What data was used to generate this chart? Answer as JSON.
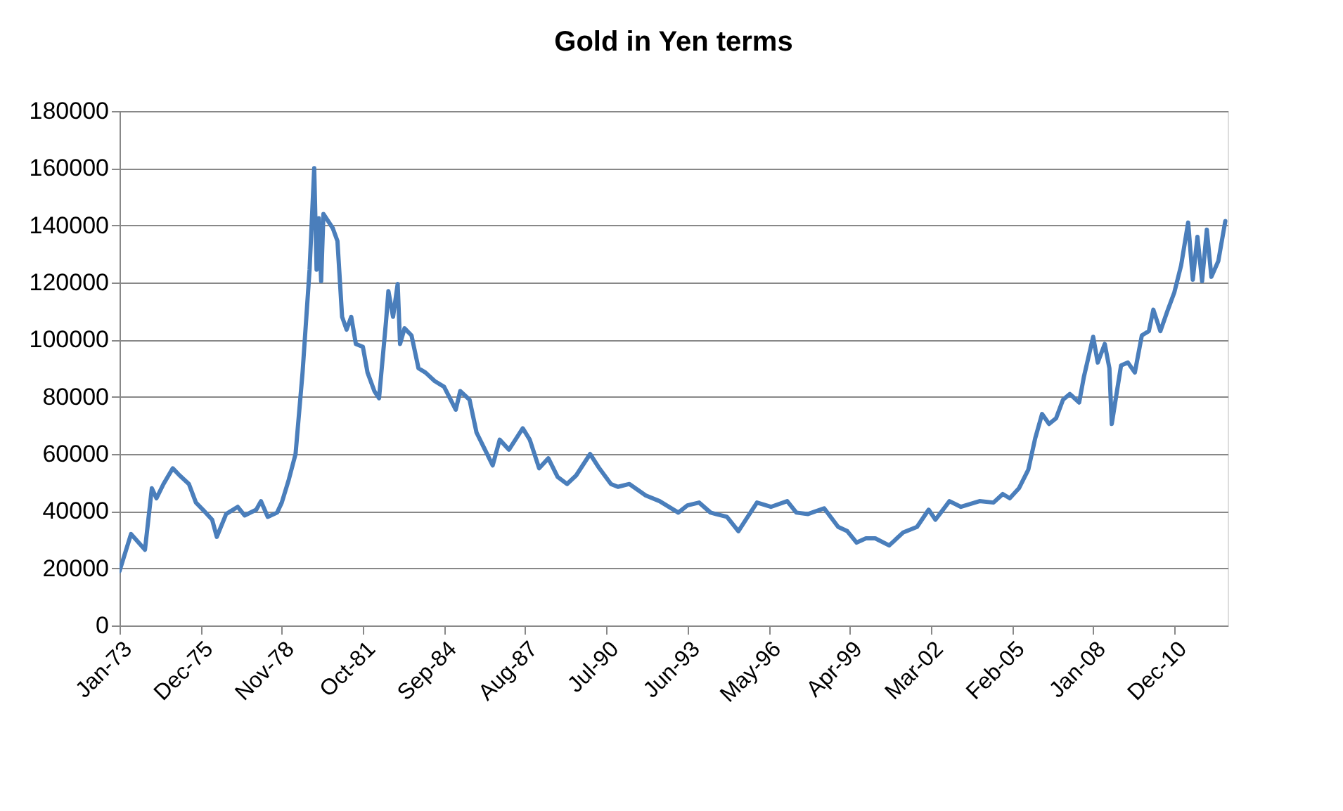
{
  "chart_data": {
    "type": "line",
    "title": "Gold in Yen terms",
    "x": [
      "1973-01",
      "1973-06",
      "1973-12",
      "1974-03",
      "1974-05",
      "1974-08",
      "1974-12",
      "1975-03",
      "1975-07",
      "1975-10",
      "1976-01",
      "1976-05",
      "1976-07",
      "1976-11",
      "1977-04",
      "1977-07",
      "1977-12",
      "1978-02",
      "1978-05",
      "1978-09",
      "1978-11",
      "1979-02",
      "1979-05",
      "1979-08",
      "1979-11",
      "1980-01",
      "1980-02",
      "1980-03",
      "1980-04",
      "1980-05",
      "1980-09",
      "1980-11",
      "1981-01",
      "1981-03",
      "1981-05",
      "1981-07",
      "1981-10",
      "1981-12",
      "1982-03",
      "1982-05",
      "1982-08",
      "1982-09",
      "1982-11",
      "1983-01",
      "1983-02",
      "1983-04",
      "1983-07",
      "1983-10",
      "1984-01",
      "1984-05",
      "1984-09",
      "1985-02",
      "1985-04",
      "1985-08",
      "1985-11",
      "1986-03",
      "1986-06",
      "1986-09",
      "1987-01",
      "1987-07",
      "1987-10",
      "1988-02",
      "1988-06",
      "1988-10",
      "1989-02",
      "1989-06",
      "1989-12",
      "1990-04",
      "1990-09",
      "1990-12",
      "1991-05",
      "1991-12",
      "1992-06",
      "1993-02",
      "1993-06",
      "1993-11",
      "1994-04",
      "1994-11",
      "1995-04",
      "1995-08",
      "1995-12",
      "1996-06",
      "1997-01",
      "1997-05",
      "1997-10",
      "1998-05",
      "1998-11",
      "1999-03",
      "1999-07",
      "1999-11",
      "2000-03",
      "2000-09",
      "2001-03",
      "2001-09",
      "2002-02",
      "2002-05",
      "2002-11",
      "2003-04",
      "2003-12",
      "2004-06",
      "2004-10",
      "2005-01",
      "2005-05",
      "2005-09",
      "2005-12",
      "2006-03",
      "2006-06",
      "2006-09",
      "2006-12",
      "2007-03",
      "2007-07",
      "2007-09",
      "2008-01",
      "2008-03",
      "2008-06",
      "2008-08",
      "2008-09",
      "2009-01",
      "2009-04",
      "2009-07",
      "2009-10",
      "2010-01",
      "2010-03",
      "2010-06",
      "2010-09",
      "2010-12",
      "2011-03",
      "2011-06",
      "2011-08",
      "2011-10",
      "2011-12",
      "2012-02",
      "2012-04",
      "2012-07",
      "2012-10"
    ],
    "series": [
      {
        "color": "#4a7ebb",
        "values": [
          19000,
          32000,
          26500,
          48000,
          44500,
          49500,
          55000,
          52500,
          49500,
          43000,
          40500,
          37000,
          31000,
          39000,
          41500,
          38500,
          40500,
          43500,
          38000,
          39500,
          43000,
          51000,
          60000,
          88500,
          124500,
          160000,
          124500,
          142500,
          120500,
          144000,
          139000,
          134500,
          108000,
          103500,
          108000,
          98500,
          97500,
          88500,
          82000,
          79500,
          106500,
          117000,
          108000,
          119500,
          98500,
          104000,
          101500,
          90000,
          88500,
          85500,
          83500,
          75500,
          82000,
          79000,
          67500,
          61000,
          56000,
          65000,
          61500,
          69000,
          65000,
          55000,
          58500,
          52000,
          49500,
          52500,
          60000,
          55000,
          49500,
          48500,
          49500,
          45500,
          43500,
          39500,
          42000,
          43000,
          39500,
          38000,
          33000,
          38000,
          43000,
          41500,
          43500,
          39500,
          39000,
          41000,
          34500,
          33000,
          29000,
          30500,
          30500,
          28000,
          32500,
          34500,
          40500,
          37000,
          43500,
          41500,
          43500,
          43000,
          46000,
          44500,
          48000,
          54500,
          65500,
          74000,
          70500,
          72500,
          79000,
          81000,
          78000,
          87000,
          101000,
          92000,
          98500,
          90000,
          70500,
          91000,
          92000,
          88500,
          101500,
          103000,
          110500,
          103000,
          110000,
          116500,
          126000,
          141000,
          121000,
          136000,
          120500,
          138500,
          122000,
          127500,
          141500
        ]
      }
    ],
    "xlim": [
      "1973-01",
      "2012-11"
    ],
    "xticks": [
      {
        "value": "1973-01",
        "label": "Jan-73"
      },
      {
        "value": "1975-12",
        "label": "Dec-75"
      },
      {
        "value": "1978-11",
        "label": "Nov-78"
      },
      {
        "value": "1981-10",
        "label": "Oct-81"
      },
      {
        "value": "1984-09",
        "label": "Sep-84"
      },
      {
        "value": "1987-08",
        "label": "Aug-87"
      },
      {
        "value": "1990-07",
        "label": "Jul-90"
      },
      {
        "value": "1993-06",
        "label": "Jun-93"
      },
      {
        "value": "1996-05",
        "label": "May-96"
      },
      {
        "value": "1999-04",
        "label": "Apr-99"
      },
      {
        "value": "2002-03",
        "label": "Mar-02"
      },
      {
        "value": "2005-02",
        "label": "Feb-05"
      },
      {
        "value": "2008-01",
        "label": "Jan-08"
      },
      {
        "value": "2010-12",
        "label": "Dec-10"
      }
    ],
    "ylim": [
      0,
      180000
    ],
    "yticks": [
      0,
      20000,
      40000,
      60000,
      80000,
      100000,
      120000,
      140000,
      160000,
      180000
    ],
    "grid": "y",
    "legend": false,
    "marker": "none",
    "line_style": "solid"
  }
}
